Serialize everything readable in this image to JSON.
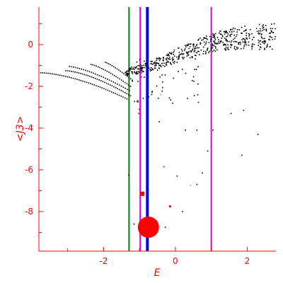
{
  "colors": {
    "axis": "#ff0000",
    "points": "#000000",
    "highlight": "#ff0000",
    "line_green": "#008000",
    "line_magenta": "#dd00dd",
    "line_blue": "#0000ff"
  },
  "chart_data": {
    "type": "scatter",
    "title": "",
    "xlabel": "E",
    "ylabel": "<J3>",
    "xlim": [
      -3.8,
      2.8
    ],
    "ylim": [
      -9.9,
      1.8
    ],
    "xticks": [
      -2,
      0,
      2
    ],
    "yticks": [
      0,
      -2,
      -4,
      -6,
      -8
    ],
    "grid": false,
    "vertical_lines": [
      {
        "x": -1.29,
        "color": "#008000"
      },
      {
        "x": -0.98,
        "color": "#dd00dd"
      },
      {
        "x": -0.78,
        "color": "#0000ff"
      },
      {
        "x": 1.0,
        "color": "#dd00dd"
      }
    ],
    "highlighted_points": [
      {
        "x": -0.75,
        "y": -8.75,
        "size": 5.0
      },
      {
        "x": -0.92,
        "y": -7.15,
        "size": 2.0
      },
      {
        "x": -0.15,
        "y": -7.75,
        "size": 1.0
      },
      {
        "x": -0.32,
        "y": -5.85,
        "size": 0.6
      },
      {
        "x": 0.42,
        "y": -6.75,
        "size": 0.4
      },
      {
        "x": -1.05,
        "y": -2.72,
        "size": 1.0
      },
      {
        "x": -1.0,
        "y": -3.1,
        "size": 0.7
      },
      {
        "x": -1.02,
        "y": -3.3,
        "size": 0.6
      },
      {
        "x": -1.25,
        "y": -2.45,
        "size": 0.6
      },
      {
        "x": -0.95,
        "y": -1.55,
        "size": 0.6
      },
      {
        "x": -0.4,
        "y": -2.4,
        "size": 0.4
      }
    ]
  }
}
